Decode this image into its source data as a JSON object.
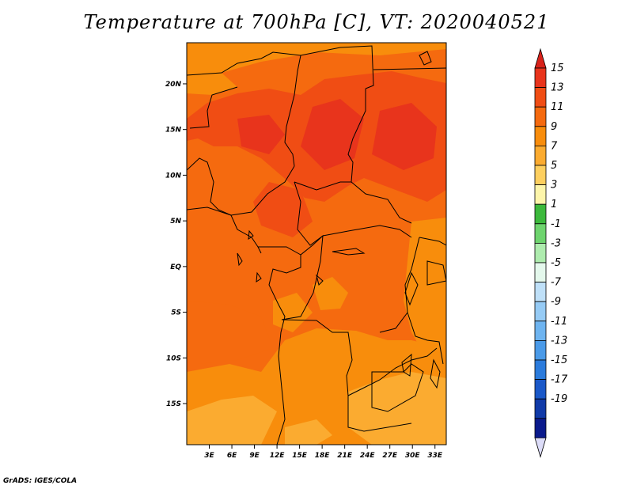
{
  "title": "Temperature at 700hPa [C], VT: 2020040521",
  "credit": "GrADS: IGES/COLA",
  "map": {
    "lon_range": [
      0,
      34.5
    ],
    "lat_range": [
      -19.5,
      24.5
    ],
    "lat_ticks": [
      {
        "value": 20,
        "label": "20N"
      },
      {
        "value": 15,
        "label": "15N"
      },
      {
        "value": 10,
        "label": "10N"
      },
      {
        "value": 5,
        "label": "5N"
      },
      {
        "value": 0,
        "label": "EQ"
      },
      {
        "value": -5,
        "label": "5S"
      },
      {
        "value": -10,
        "label": "10S"
      },
      {
        "value": -15,
        "label": "15S"
      }
    ],
    "lon_ticks": [
      {
        "value": 3,
        "label": "3E"
      },
      {
        "value": 6,
        "label": "6E"
      },
      {
        "value": 9,
        "label": "9E"
      },
      {
        "value": 12,
        "label": "12E"
      },
      {
        "value": 15,
        "label": "15E"
      },
      {
        "value": 18,
        "label": "18E"
      },
      {
        "value": 21,
        "label": "21E"
      },
      {
        "value": 24,
        "label": "24E"
      },
      {
        "value": 27,
        "label": "27E"
      },
      {
        "value": 30,
        "label": "30E"
      },
      {
        "value": 33,
        "label": "33E"
      }
    ]
  },
  "colorbar": {
    "levels": [
      {
        "label": "15",
        "color": "#e8341c"
      },
      {
        "label": "13",
        "color": "#f04d14"
      },
      {
        "label": "11",
        "color": "#f56a0f"
      },
      {
        "label": "9",
        "color": "#f88d0c"
      },
      {
        "label": "7",
        "color": "#fbab30"
      },
      {
        "label": "5",
        "color": "#fdcf5f"
      },
      {
        "label": "3",
        "color": "#fdf5aa"
      },
      {
        "label": "1",
        "color": "#3cb93c"
      },
      {
        "label": "-1",
        "color": "#6ed46e"
      },
      {
        "label": "-3",
        "color": "#aeecae"
      },
      {
        "label": "-5",
        "color": "#e4f8ec"
      },
      {
        "label": "-7",
        "color": "#bfe0f8"
      },
      {
        "label": "-9",
        "color": "#96cbf5"
      },
      {
        "label": "-11",
        "color": "#6eb4f0"
      },
      {
        "label": "-13",
        "color": "#4a9ae8"
      },
      {
        "label": "-15",
        "color": "#2b7bdc"
      },
      {
        "label": "-17",
        "color": "#1a58c8"
      },
      {
        "label": "-19",
        "color": "#103aa8"
      }
    ],
    "top_triangle_color": "#d8221a",
    "bottom_triangle_color": "#dcdcf8",
    "bottom_segment_color": "#0a1a8c"
  }
}
